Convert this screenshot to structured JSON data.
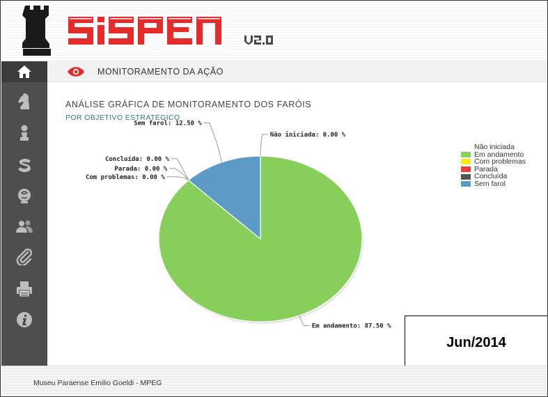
{
  "header": {
    "logo_alt": "SISPEN",
    "version": "v2.0"
  },
  "breadcrumb": {
    "text": "MONITORAMENTO DA AÇÃO"
  },
  "sidebar": {
    "items": [
      {
        "icon": "home-icon"
      },
      {
        "icon": "knight-icon"
      },
      {
        "icon": "pawn-icon"
      },
      {
        "icon": "s-symbol-icon"
      },
      {
        "icon": "brain-icon"
      },
      {
        "icon": "users-icon"
      },
      {
        "icon": "paperclip-icon"
      },
      {
        "icon": "printer-icon"
      },
      {
        "icon": "info-icon"
      }
    ]
  },
  "main": {
    "title": "ANÁLISE GRÁFICA DE MONITORAMENTO DOS FARÓIS",
    "subtitle": "POR OBJETIVO ESTRATÉGICO"
  },
  "chart_data": {
    "type": "pie",
    "title": "ANÁLISE GRÁFICA DE MONITORAMENTO DOS FARÓIS",
    "subtitle": "POR OBJETIVO ESTRATÉGICO",
    "legend_position": "right",
    "slices": [
      {
        "name": "Não iniciada",
        "value": 0.0,
        "label": "Não iniciada: 0.00 %",
        "color": "#ffffff"
      },
      {
        "name": "Em andamento",
        "value": 87.5,
        "label": "Em andamento: 87.50 %",
        "color": "#87ce5a"
      },
      {
        "name": "Com problemas",
        "value": 0.0,
        "label": "Com problemas: 0.00 %",
        "color": "#f7e916"
      },
      {
        "name": "Parada",
        "value": 0.0,
        "label": "Parada: 0.00 %",
        "color": "#f03c3c"
      },
      {
        "name": "Concluída",
        "value": 0.0,
        "label": "Concluída: 0.00 %",
        "color": "#555555"
      },
      {
        "name": "Sem farol",
        "value": 12.5,
        "label": "Sem farol: 12.50 %",
        "color": "#5b9bc6"
      }
    ]
  },
  "stamp": {
    "text": "Jun/2014"
  },
  "footer": {
    "text": "Museu Paraense Emilio Goeldi - MPEG"
  }
}
